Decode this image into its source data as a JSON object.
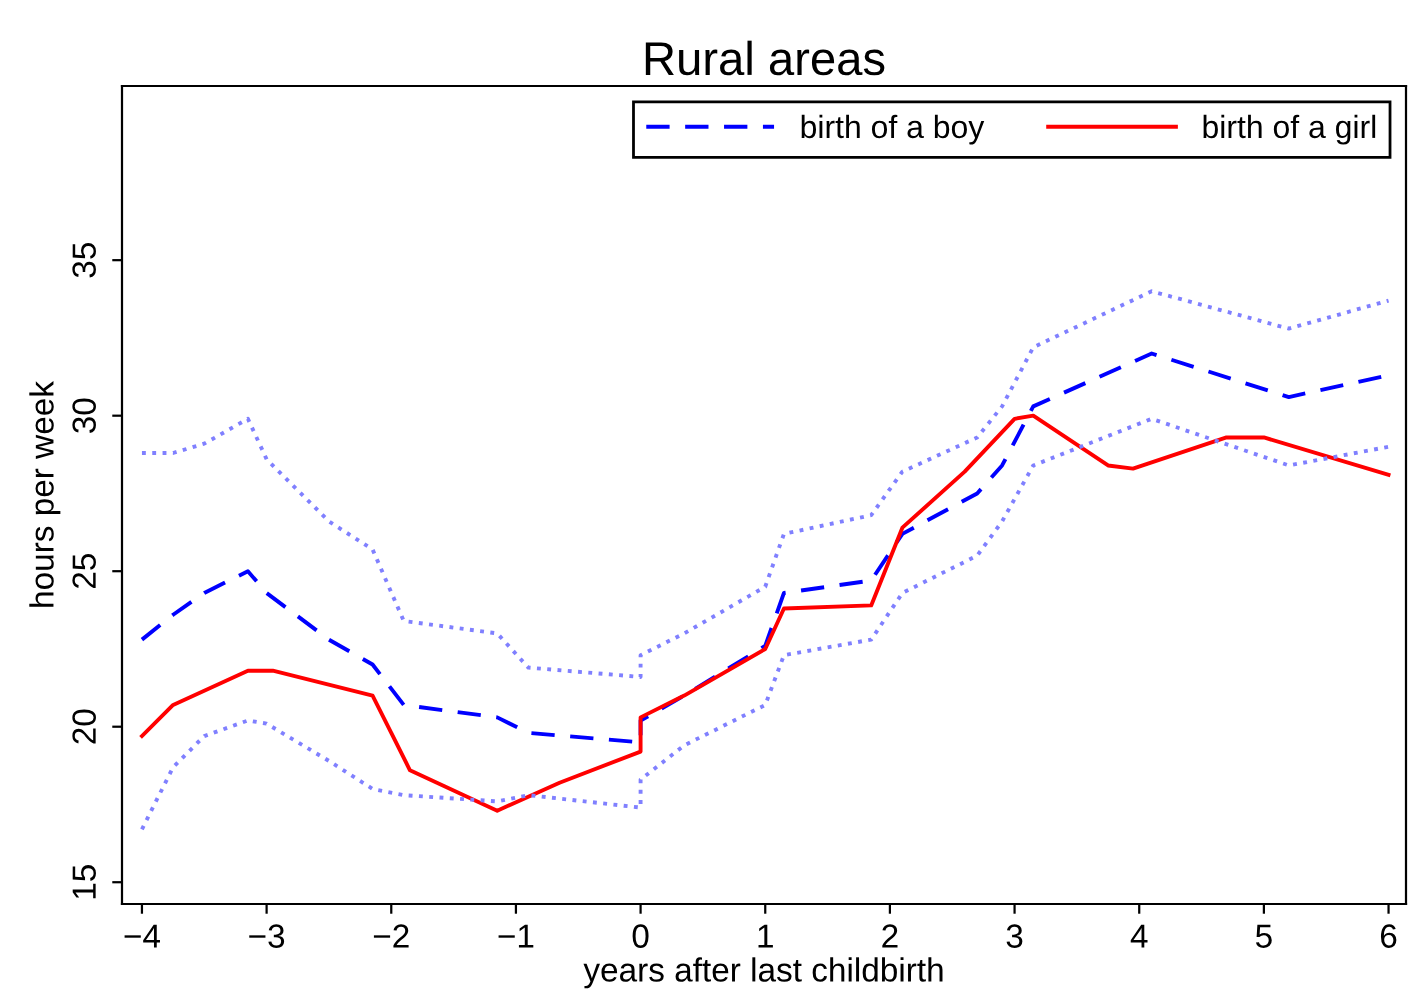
{
  "chart_data": {
    "type": "line",
    "title": "Rural areas",
    "xlabel": "years after last childbirth",
    "ylabel": "hours per week",
    "xlim": [
      -4.16,
      6.14
    ],
    "xticks": [
      {
        "value": -4,
        "label": "−4"
      },
      {
        "value": -3,
        "label": "−3"
      },
      {
        "value": -2,
        "label": "−2"
      },
      {
        "value": -1,
        "label": "−1"
      },
      0,
      1,
      2,
      3,
      4,
      5,
      6
    ],
    "ylim": [
      14.3,
      40.6
    ],
    "yticks": [
      15,
      20,
      25,
      30,
      35
    ],
    "grid": false,
    "legend": "top right",
    "series": [
      {
        "name": "birth of a boy",
        "color": "#0000ff",
        "line_style": "dashed",
        "x": [
          -4,
          -3.75,
          -3.5,
          -3.15,
          -3,
          -2.5,
          -2.15,
          -1.9,
          -1.15,
          -0.9,
          0,
          0,
          0.35,
          1,
          1.15,
          1.85,
          2.1,
          2.7,
          2.9,
          3.15,
          4.1,
          5.2,
          6
        ],
        "values": [
          22.8,
          23.6,
          24.3,
          25.0,
          24.3,
          22.8,
          22.0,
          20.7,
          20.3,
          19.8,
          19.5,
          20.2,
          21.0,
          22.6,
          24.3,
          24.7,
          26.2,
          27.5,
          28.4,
          30.3,
          32.0,
          30.6,
          31.3
        ]
      },
      {
        "name": "birth of a girl",
        "color": "#ff0000",
        "line_style": "solid",
        "x": [
          -4,
          -3.75,
          -3.15,
          -2.95,
          -2.15,
          -2,
          -1.85,
          -1.15,
          -0.65,
          0,
          0,
          0.35,
          1,
          1.15,
          1.85,
          2.1,
          2.6,
          3.0,
          3.15,
          3.75,
          3.95,
          4.7,
          5.0,
          6
        ],
        "values": [
          19.7,
          20.7,
          21.8,
          21.8,
          21.0,
          19.8,
          18.6,
          17.3,
          18.2,
          19.2,
          20.3,
          21.0,
          22.5,
          23.8,
          23.9,
          26.4,
          28.2,
          29.9,
          30.0,
          28.4,
          28.3,
          29.3,
          29.3,
          28.1
        ]
      },
      {
        "color": "#8080ff",
        "line_style": "dotted",
        "x": [
          -4,
          -3.75,
          -3.5,
          -3.15,
          -3,
          -2.5,
          -2.15,
          -1.9,
          -1.15,
          -0.9,
          0,
          0,
          0.35,
          1,
          1.15,
          1.85,
          2.1,
          2.7,
          2.9,
          3.15,
          4.1,
          5.2,
          6
        ],
        "values": [
          28.8,
          28.8,
          29.1,
          29.9,
          28.6,
          26.6,
          25.7,
          23.4,
          23.0,
          21.9,
          21.6,
          22.3,
          23.0,
          24.5,
          26.2,
          26.8,
          28.2,
          29.3,
          30.3,
          32.2,
          34.0,
          32.8,
          33.7
        ]
      },
      {
        "color": "#8080ff",
        "line_style": "dotted",
        "x": [
          -4,
          -3.75,
          -3.5,
          -3.15,
          -3,
          -2.5,
          -2.15,
          -1.9,
          -1.15,
          -0.9,
          0,
          0,
          0.35,
          1,
          1.15,
          1.85,
          2.1,
          2.7,
          2.9,
          3.15,
          4.1,
          5.2,
          6
        ],
        "values": [
          16.7,
          18.7,
          19.7,
          20.2,
          20.1,
          18.9,
          18.0,
          17.8,
          17.6,
          17.8,
          17.4,
          18.3,
          19.4,
          20.7,
          22.3,
          22.8,
          24.3,
          25.5,
          26.6,
          28.4,
          29.9,
          28.4,
          29.0
        ]
      }
    ]
  }
}
